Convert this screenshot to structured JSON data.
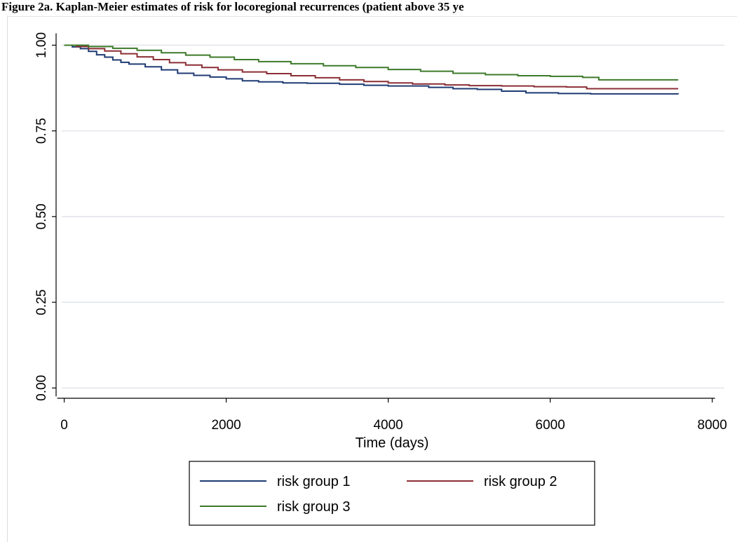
{
  "title": "Figure 2a. Kaplan-Meier estimates of risk for locoregional recurrences (patient above 35 ye",
  "chart_data": {
    "type": "line",
    "xlabel": "Time (days)",
    "ylabel": "",
    "xlim": [
      -100,
      8150
    ],
    "ylim": [
      -0.03,
      1.05
    ],
    "xticks": [
      0,
      2000,
      4000,
      6000,
      8000
    ],
    "yticks": [
      0.0,
      0.25,
      0.5,
      0.75,
      1.0
    ],
    "xtick_labels": [
      "0",
      "2000",
      "4000",
      "6000",
      "8000"
    ],
    "ytick_labels": [
      "0.00",
      "0.25",
      "0.50",
      "0.75",
      "1.00"
    ],
    "grid": "horizontal",
    "legend_position": "bottom",
    "step": true,
    "series": [
      {
        "name": "risk group 1",
        "color": "#1f3b73",
        "x": [
          0,
          100,
          200,
          300,
          400,
          500,
          600,
          700,
          800,
          1000,
          1200,
          1400,
          1600,
          1800,
          2000,
          2200,
          2400,
          2700,
          3000,
          3400,
          3700,
          4000,
          4500,
          4800,
          5100,
          5400,
          5700,
          6100,
          6500,
          7580
        ],
        "y": [
          1.0,
          0.995,
          0.99,
          0.982,
          0.972,
          0.965,
          0.957,
          0.95,
          0.945,
          0.937,
          0.928,
          0.918,
          0.912,
          0.907,
          0.902,
          0.896,
          0.893,
          0.89,
          0.889,
          0.886,
          0.883,
          0.881,
          0.877,
          0.873,
          0.871,
          0.866,
          0.861,
          0.859,
          0.858,
          0.857
        ]
      },
      {
        "name": "risk group 2",
        "color": "#8b2e35",
        "x": [
          0,
          150,
          300,
          500,
          700,
          900,
          1100,
          1300,
          1500,
          1700,
          1900,
          2200,
          2500,
          2800,
          3100,
          3400,
          3700,
          4000,
          4300,
          4700,
          5000,
          5400,
          5800,
          6200,
          6450,
          7580
        ],
        "y": [
          1.0,
          0.996,
          0.99,
          0.983,
          0.975,
          0.966,
          0.958,
          0.949,
          0.942,
          0.935,
          0.928,
          0.922,
          0.917,
          0.911,
          0.905,
          0.899,
          0.894,
          0.89,
          0.887,
          0.884,
          0.882,
          0.881,
          0.879,
          0.878,
          0.873,
          0.873
        ]
      },
      {
        "name": "risk group 3",
        "color": "#3d7a2a",
        "x": [
          0,
          300,
          600,
          900,
          1200,
          1500,
          1800,
          2100,
          2400,
          2800,
          3200,
          3600,
          4000,
          4400,
          4800,
          5200,
          5600,
          6000,
          6400,
          6600,
          7580
        ],
        "y": [
          1.0,
          0.996,
          0.991,
          0.985,
          0.978,
          0.971,
          0.965,
          0.958,
          0.952,
          0.946,
          0.94,
          0.935,
          0.929,
          0.924,
          0.918,
          0.914,
          0.911,
          0.909,
          0.906,
          0.899,
          0.899
        ]
      }
    ]
  }
}
